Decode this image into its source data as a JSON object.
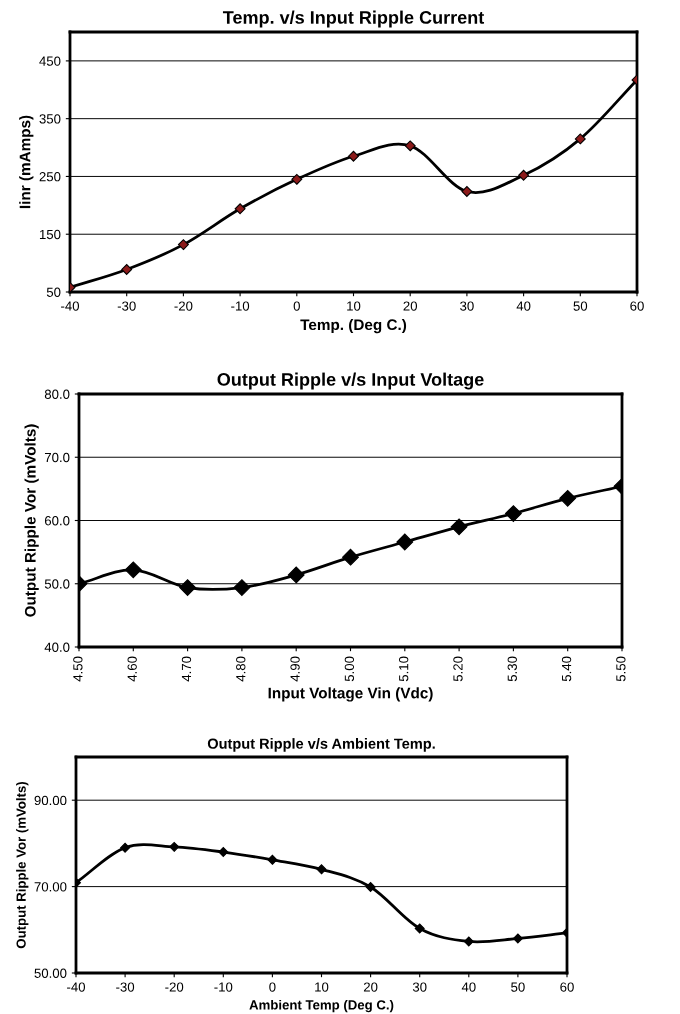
{
  "chart_data": [
    {
      "type": "line",
      "title": "Temp. v/s Input Ripple Current",
      "xlabel": "Temp. (Deg C.)",
      "ylabel": "Iinr (mAmps)",
      "x": [
        -40,
        -30,
        -20,
        -10,
        0,
        10,
        20,
        30,
        40,
        50,
        60
      ],
      "series": [
        {
          "color": "#000000",
          "colors": [
            "#8b1a1a",
            "#8b1a1a",
            "#8b1a1a",
            "#8b1a1a",
            "#8b1a1a",
            "#8b1a1a",
            "#8b1a1a",
            "#8b1a1a",
            "#8b1a1a",
            "#8b1a1a",
            "#8b1a1a"
          ],
          "values": [
            58,
            89,
            132,
            194,
            245,
            285,
            303,
            224,
            252,
            315,
            417
          ]
        }
      ],
      "xlim": [
        -40,
        60
      ],
      "xticks": [
        -40,
        -30,
        -20,
        -10,
        0,
        10,
        20,
        30,
        40,
        50,
        60
      ],
      "ylim": [
        50,
        500
      ],
      "yticks": [
        50,
        150,
        250,
        350,
        450
      ],
      "grid": "y",
      "marker": "diamond",
      "line_style": "solid"
    },
    {
      "type": "line",
      "title": "Output Ripple v/s Input Voltage",
      "xlabel": "Input Voltage Vin (Vdc)",
      "ylabel": "Output Ripple Vor (mVolts)",
      "x": [
        4.5,
        4.6,
        4.7,
        4.8,
        4.9,
        5.0,
        5.1,
        5.2,
        5.3,
        5.4,
        5.5
      ],
      "series": [
        {
          "color": "#000000",
          "values": [
            50.0,
            52.2,
            49.4,
            49.4,
            51.4,
            54.2,
            56.6,
            59.0,
            61.1,
            63.5,
            65.4
          ]
        }
      ],
      "xlim": [
        4.5,
        5.5
      ],
      "xticks": [
        {
          "value": 4.5,
          "label": "4.50"
        },
        {
          "value": 4.6,
          "label": "4.60"
        },
        {
          "value": 4.7,
          "label": "4.70"
        },
        {
          "value": 4.8,
          "label": "4.80"
        },
        {
          "value": 4.9,
          "label": "4.90"
        },
        {
          "value": 5.0,
          "label": "5.00"
        },
        {
          "value": 5.1,
          "label": "5.10"
        },
        {
          "value": 5.2,
          "label": "5.20"
        },
        {
          "value": 5.3,
          "label": "5.30"
        },
        {
          "value": 5.4,
          "label": "5.40"
        },
        {
          "value": 5.5,
          "label": "5.50"
        }
      ],
      "ylim": [
        40,
        80
      ],
      "yticks": [
        {
          "value": 40,
          "label": "40.0"
        },
        {
          "value": 50,
          "label": "50.0"
        },
        {
          "value": 60,
          "label": "60.0"
        },
        {
          "value": 70,
          "label": "70.0"
        },
        {
          "value": 80,
          "label": "80.0"
        }
      ],
      "grid": "y",
      "marker": "diamond",
      "line_style": "solid"
    },
    {
      "type": "line",
      "title": "Output Ripple v/s Ambient Temp.",
      "xlabel": "Ambient Temp (Deg C.)",
      "ylabel": "Output Ripple Vor (mVolts)",
      "x": [
        -40,
        -30,
        -20,
        -10,
        0,
        10,
        20,
        30,
        40,
        50,
        60
      ],
      "series": [
        {
          "color": "#000000",
          "values": [
            70.9,
            79.0,
            79.2,
            78.0,
            76.2,
            74.0,
            69.9,
            60.3,
            57.3,
            58.0,
            59.3
          ]
        }
      ],
      "xlim": [
        -40,
        60
      ],
      "xticks": [
        -40,
        -30,
        -20,
        -10,
        0,
        10,
        20,
        30,
        40,
        50,
        60
      ],
      "ylim": [
        50,
        100
      ],
      "yticks": [
        {
          "value": 50,
          "label": "50.00"
        },
        {
          "value": 70,
          "label": "70.00"
        },
        {
          "value": 90,
          "label": "90.00"
        }
      ],
      "grid": "y",
      "marker": "diamond",
      "line_style": "solid"
    }
  ]
}
